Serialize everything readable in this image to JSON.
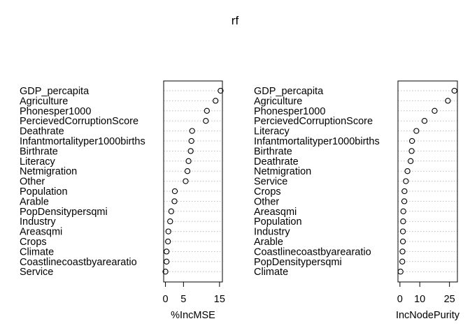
{
  "title": "rf",
  "chart_data": [
    {
      "type": "scatter",
      "subtype": "dotchart",
      "xlabel": "%IncMSE",
      "xlim": [
        -0.5,
        15.8
      ],
      "xticks": [
        0,
        5,
        15
      ],
      "grid": "dotted horizontal guides",
      "categories": [
        "GDP_percapita",
        "Agriculture",
        "Phonesper1000",
        "PercievedCorruptionScore",
        "Deathrate",
        "Infantmortalityper1000births",
        "Birthrate",
        "Literacy",
        "Netmigration",
        "Other",
        "Population",
        "Arable",
        "PopDensitypersqmi",
        "Industry",
        "Areasqmi",
        "Crops",
        "Climate",
        "Coastlinecoastbyarearatio",
        "Service"
      ],
      "values": [
        15.3,
        13.9,
        11.5,
        11.2,
        7.4,
        7.2,
        7.0,
        6.4,
        6.1,
        5.6,
        2.6,
        2.5,
        1.6,
        1.3,
        0.8,
        0.7,
        0.3,
        0.3,
        0.0
      ]
    },
    {
      "type": "scatter",
      "subtype": "dotchart",
      "xlabel": "IncNodePurity",
      "xlim": [
        -1,
        29
      ],
      "xticks": [
        0,
        10,
        25
      ],
      "grid": "dotted horizontal guides",
      "categories": [
        "GDP_percapita",
        "Agriculture",
        "Phonesper1000",
        "PercievedCorruptionScore",
        "Literacy",
        "Infantmortalityper1000births",
        "Birthrate",
        "Deathrate",
        "Netmigration",
        "Service",
        "Crops",
        "Other",
        "Areasqmi",
        "Population",
        "Industry",
        "Arable",
        "Coastlinecoastbyarearatio",
        "PopDensitypersqmi",
        "Climate"
      ],
      "values": [
        27.5,
        24.2,
        17.5,
        12.4,
        8.3,
        6.1,
        5.9,
        5.4,
        3.8,
        3.0,
        2.3,
        2.2,
        1.7,
        1.6,
        1.5,
        1.5,
        1.3,
        1.2,
        0.3
      ]
    }
  ]
}
